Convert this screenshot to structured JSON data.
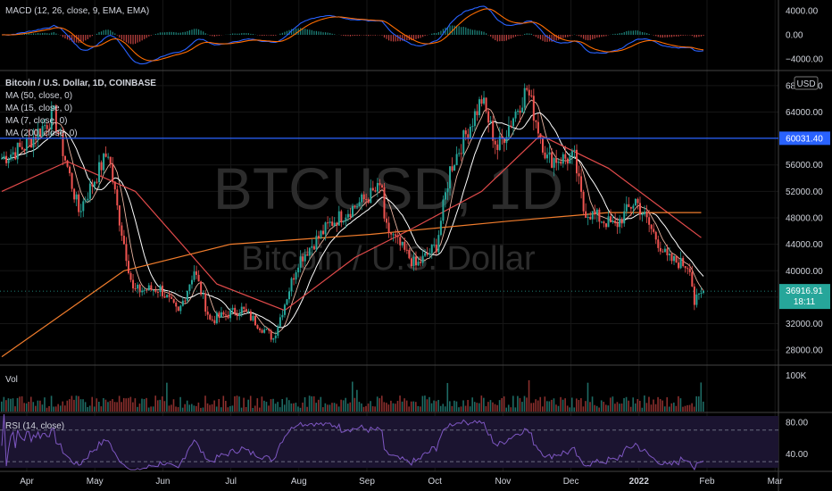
{
  "panels": {
    "macd": {
      "label": "MACD (12, 26, close, 9, EMA, EMA)",
      "ticks": [
        "4000.00",
        "0.00",
        "−4000.00"
      ]
    },
    "price": {
      "title": "Bitcoin / U.S. Dollar, 1D, COINBASE",
      "ma_labels": [
        "MA (50, close, 0)",
        "MA (15, close, 0)",
        "MA (7, close, 0)",
        "MA (200, close, 0)"
      ],
      "currency_badge": "USD",
      "ticks": [
        "68000.00",
        "64000.00",
        "60000.00",
        "56000.00",
        "52000.00",
        "48000.00",
        "44000.00",
        "40000.00",
        "36000.00",
        "32000.00",
        "28000.00"
      ],
      "hline_label": "60031.40",
      "price_label": "36916.91",
      "countdown": "18:11",
      "watermark_symbol": "BTCUSD, 1D",
      "watermark_name": "Bitcoin / U.S. Dollar"
    },
    "volume": {
      "label": "Vol",
      "tick": "100K"
    },
    "rsi": {
      "label": "RSI (14, close)",
      "ticks": [
        "80.00",
        "40.00"
      ]
    }
  },
  "x_axis": [
    "Apr",
    "May",
    "Jun",
    "Jul",
    "Aug",
    "Sep",
    "Oct",
    "Nov",
    "Dec",
    "2022",
    "Feb",
    "Mar"
  ],
  "colors": {
    "background": "#000000",
    "up": "#26a69a",
    "down": "#ef5350",
    "ma50": "#e04a4a",
    "ma15": "#ffffff",
    "ma7": "#e8b3a0",
    "ma200": "#f07c2c",
    "hline": "#2962ff",
    "macd_line": "#2962ff",
    "signal_line": "#ff6d00",
    "rsi": "#7e57c2"
  },
  "chart_data": {
    "type": "line",
    "symbol": "BTCUSD",
    "timeframe": "1D",
    "y_range": [
      26000,
      70000
    ],
    "horizontal_line": 60031.4,
    "last_price": 36916.91,
    "x_labels": [
      "Apr",
      "May",
      "Jun",
      "Jul",
      "Aug",
      "Sep",
      "Oct",
      "Nov",
      "Dec",
      "2022",
      "Feb",
      "Mar"
    ],
    "price_path": [
      [
        "2021-03-22",
        57000
      ],
      [
        "2021-04-01",
        58800
      ],
      [
        "2021-04-14",
        63500
      ],
      [
        "2021-04-25",
        49000
      ],
      [
        "2021-05-08",
        58000
      ],
      [
        "2021-05-12",
        49500
      ],
      [
        "2021-05-19",
        37000
      ],
      [
        "2021-05-31",
        37300
      ],
      [
        "2021-06-08",
        33500
      ],
      [
        "2021-06-15",
        40100
      ],
      [
        "2021-06-22",
        32500
      ],
      [
        "2021-07-06",
        34200
      ],
      [
        "2021-07-20",
        29800
      ],
      [
        "2021-07-31",
        41500
      ],
      [
        "2021-08-14",
        47100
      ],
      [
        "2021-08-23",
        49300
      ],
      [
        "2021-09-06",
        52700
      ],
      [
        "2021-09-07",
        46800
      ],
      [
        "2021-09-21",
        40700
      ],
      [
        "2021-09-30",
        43800
      ],
      [
        "2021-10-06",
        55300
      ],
      [
        "2021-10-20",
        65900
      ],
      [
        "2021-10-27",
        58500
      ],
      [
        "2021-11-09",
        67500
      ],
      [
        "2021-11-18",
        56900
      ],
      [
        "2021-11-30",
        57000
      ],
      [
        "2021-12-04",
        49200
      ],
      [
        "2021-12-18",
        46700
      ],
      [
        "2021-12-27",
        50700
      ],
      [
        "2022-01-10",
        41800
      ],
      [
        "2022-01-20",
        40700
      ],
      [
        "2022-01-22",
        35100
      ],
      [
        "2022-01-26",
        36916.91
      ]
    ],
    "series": [
      {
        "name": "MA (50, close, 0)",
        "values": [
          [
            "2021-03-22",
            52000
          ],
          [
            "2021-04-20",
            56500
          ],
          [
            "2021-05-20",
            52000
          ],
          [
            "2021-06-25",
            38000
          ],
          [
            "2021-07-25",
            34000
          ],
          [
            "2021-08-25",
            42000
          ],
          [
            "2021-09-20",
            46500
          ],
          [
            "2021-10-20",
            52000
          ],
          [
            "2021-11-15",
            60500
          ],
          [
            "2021-12-15",
            55500
          ],
          [
            "2022-01-25",
            45000
          ]
        ]
      },
      {
        "name": "MA (200, close, 0)",
        "values": [
          [
            "2021-03-22",
            27000
          ],
          [
            "2021-05-15",
            40000
          ],
          [
            "2021-07-01",
            44000
          ],
          [
            "2021-09-01",
            45500
          ],
          [
            "2021-11-01",
            47500
          ],
          [
            "2021-12-15",
            48800
          ],
          [
            "2022-01-25",
            48800
          ]
        ]
      }
    ],
    "macd_range": [
      -5500,
      5500
    ],
    "macd_ticks": [
      4000,
      0,
      -4000
    ],
    "rsi_range": [
      20,
      90
    ],
    "rsi_levels": [
      70,
      30
    ],
    "rsi_ticks": [
      80,
      40
    ]
  }
}
